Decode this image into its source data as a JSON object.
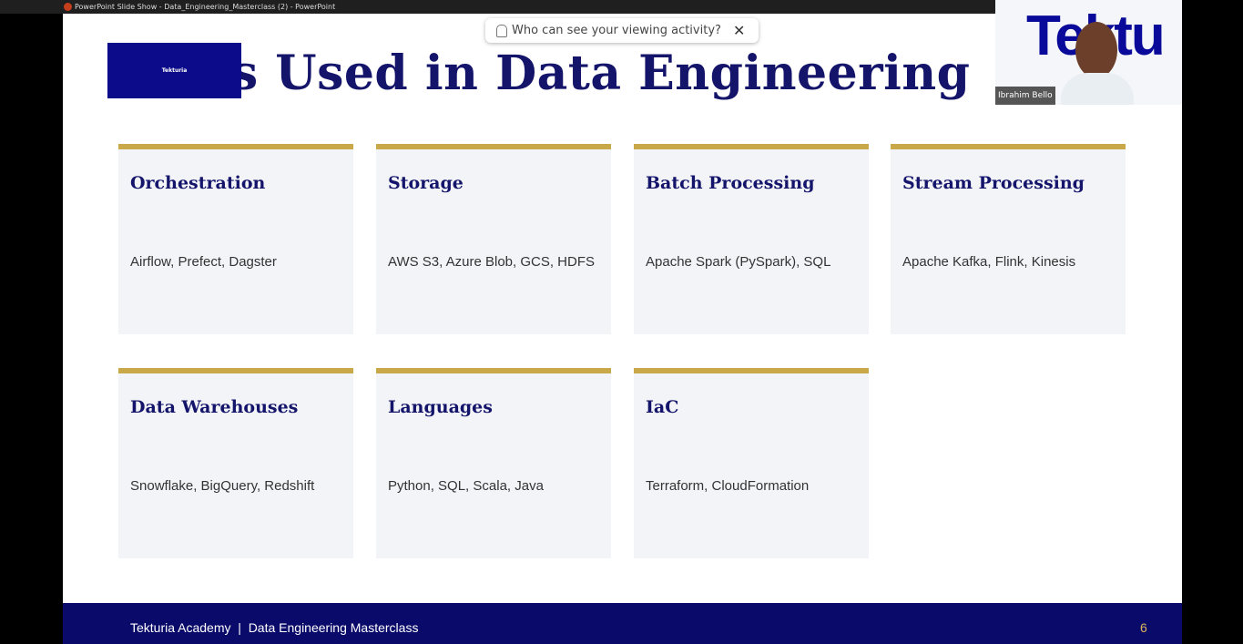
{
  "window_title": "PowerPoint Slide Show  -  Data_Engineering_Masterclass (2) - PowerPoint",
  "notification": {
    "text": "Who can see your viewing activity?"
  },
  "slide": {
    "title": "Tools Used in Data Engineering",
    "logo": "Tekturia",
    "cards": [
      {
        "title": "Orchestration",
        "tools": "Airflow, Prefect, Dagster"
      },
      {
        "title": "Storage",
        "tools": "AWS S3, Azure Blob, GCS, HDFS"
      },
      {
        "title": "Batch Processing",
        "tools": "Apache Spark (PySpark), SQL"
      },
      {
        "title": "Stream Processing",
        "tools": "Apache Kafka, Flink, Kinesis"
      },
      {
        "title": "Data Warehouses",
        "tools": "Snowflake, BigQuery, Redshift"
      },
      {
        "title": "Languages",
        "tools": "Python, SQL, Scala, Java"
      },
      {
        "title": "IaC",
        "tools": "Terraform, CloudFormation"
      }
    ],
    "footer": {
      "text": "Tekturia Academy  |  Data Engineering Masterclass",
      "page": 6
    }
  },
  "video": {
    "background_text": "Tektu",
    "name": "Ibrahim Bello"
  }
}
